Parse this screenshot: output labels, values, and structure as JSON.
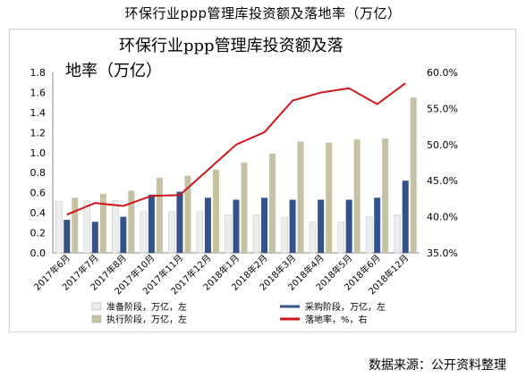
{
  "page_title": "环保行业ppp管理库投资额及落地率（万亿）",
  "chart_title_line1": "环保行业ppp管理库投资额及落",
  "chart_title_line2": "地率（万亿）",
  "source_text": "数据来源：公开资料整理",
  "colors": {
    "prep": "#ededed",
    "purchase": "#34538a",
    "exec": "#c6c1a0",
    "rate": "#d0161b"
  },
  "chart_data": {
    "type": "bar",
    "categories": [
      "2017年6月",
      "2017年7月",
      "2017年8月",
      "2017年10月",
      "2017年11月",
      "2017年12月",
      "2018年1月",
      "2018年2月",
      "2018年3月",
      "2018年4月",
      "2018年5月",
      "2018年6月",
      "2018年12月"
    ],
    "series": [
      {
        "name": "准备阶段，万亿，左",
        "axis": "left",
        "type": "bar",
        "values": [
          0.51,
          0.52,
          0.52,
          0.41,
          0.41,
          0.41,
          0.38,
          0.38,
          0.35,
          0.31,
          0.31,
          0.36,
          0.38
        ]
      },
      {
        "name": "采购阶段，万亿，左",
        "axis": "left",
        "type": "bar",
        "values": [
          0.33,
          0.31,
          0.36,
          0.58,
          0.61,
          0.55,
          0.53,
          0.55,
          0.53,
          0.53,
          0.53,
          0.55,
          0.72
        ]
      },
      {
        "name": "执行阶段，万亿，左",
        "axis": "left",
        "type": "bar",
        "values": [
          0.55,
          0.59,
          0.62,
          0.75,
          0.77,
          0.83,
          0.9,
          0.99,
          1.11,
          1.1,
          1.13,
          1.14,
          1.55
        ]
      },
      {
        "name": "落地率，%，右",
        "axis": "right",
        "type": "line",
        "values": [
          40.3,
          41.9,
          41.5,
          42.9,
          43.0,
          46.5,
          50.0,
          51.7,
          56.1,
          57.2,
          57.8,
          55.6,
          58.5
        ]
      }
    ],
    "ylim_left": [
      0,
      1.8
    ],
    "yticks_left": [
      "0.0",
      "0.2",
      "0.4",
      "0.6",
      "0.8",
      "1.0",
      "1.2",
      "1.4",
      "1.6",
      "1.8"
    ],
    "ylim_right": [
      35,
      60
    ],
    "yticks_right": [
      "35.0%",
      "40.0%",
      "45.0%",
      "50.0%",
      "55.0%",
      "60.0%"
    ],
    "legend": [
      "准备阶段，万亿，左",
      "采购阶段，万亿，左",
      "执行阶段，万亿，左",
      "落地率，%，右"
    ]
  }
}
